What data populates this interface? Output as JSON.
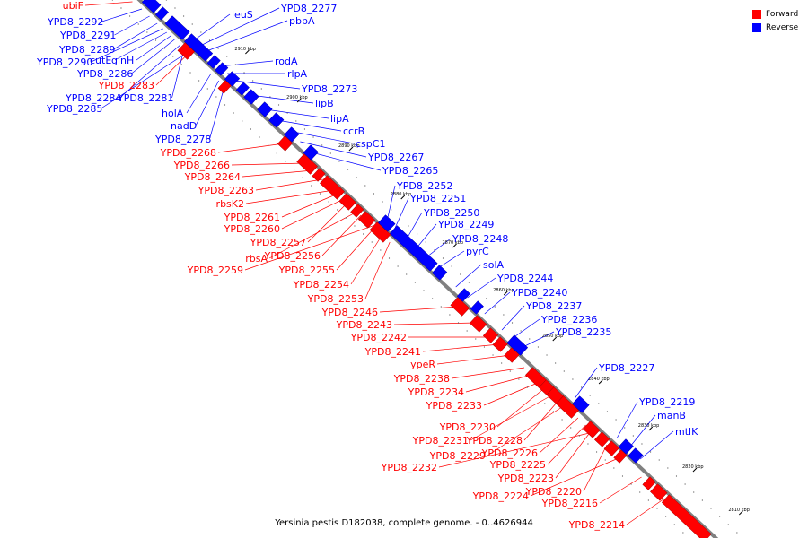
{
  "caption": "Yersinia pestis D182038, complete genome. - 0..4626944",
  "legend": [
    {
      "label": "Forward",
      "color": "#ff0000"
    },
    {
      "label": "Reverse",
      "color": "#0000ff"
    }
  ],
  "colors": {
    "forward": "#ff0000",
    "reverse": "#0000ff",
    "backbone": "#808080"
  },
  "ticks": [
    "2910 kbp",
    "2900 kbp",
    "2890 kbp",
    "2880 kbp",
    "2870 kbp",
    "2860 kbp",
    "2850 kbp",
    "2840 kbp",
    "2830 kbp",
    "2820 kbp",
    "2810 kbp"
  ],
  "forward_labels": [
    "ubiF",
    "YPD8_2283",
    "YPD8_2268",
    "YPD8_2266",
    "YPD8_2264",
    "YPD8_2263",
    "rbsK2",
    "YPD8_2261",
    "YPD8_2260",
    "YPD8_2257",
    "rbsA",
    "YPD8_2256",
    "YPD8_2259",
    "YPD8_2255",
    "YPD8_2254",
    "YPD8_2253",
    "YPD8_2246",
    "YPD8_2243",
    "YPD8_2242",
    "YPD8_2241",
    "ypeR",
    "YPD8_2238",
    "YPD8_2234",
    "YPD8_2233",
    "YPD8_2230",
    "YPD8_2231",
    "YPD8_2228",
    "YPD8_2229",
    "YPD8_2226",
    "YPD8_2225",
    "YPD8_2232",
    "YPD8_2223",
    "YPD8_2220",
    "YPD8_2224",
    "YPD8_2216",
    "YPD8_2214"
  ],
  "reverse_labels": [
    "YPD8_2292",
    "YPD8_2291",
    "YPD8_2289",
    "YPD8_2290",
    "cutE",
    "glnH",
    "YPD8_2286",
    "YPD8_2284",
    "YPD8_2281",
    "YPD8_2285",
    "holA",
    "nadD",
    "YPD8_2278",
    "leuS",
    "YPD8_2277",
    "pbpA",
    "rodA",
    "rlpA",
    "YPD8_2273",
    "lipB",
    "lipA",
    "ccrB",
    "cspC1",
    "YPD8_2267",
    "YPD8_2265",
    "YPD8_2252",
    "YPD8_2251",
    "YPD8_2250",
    "YPD8_2249",
    "YPD8_2248",
    "pyrC",
    "solA",
    "YPD8_2244",
    "YPD8_2240",
    "YPD8_2237",
    "YPD8_2236",
    "YPD8_2235",
    "YPD8_2227",
    "YPD8_2219",
    "manB",
    "mtlK"
  ]
}
